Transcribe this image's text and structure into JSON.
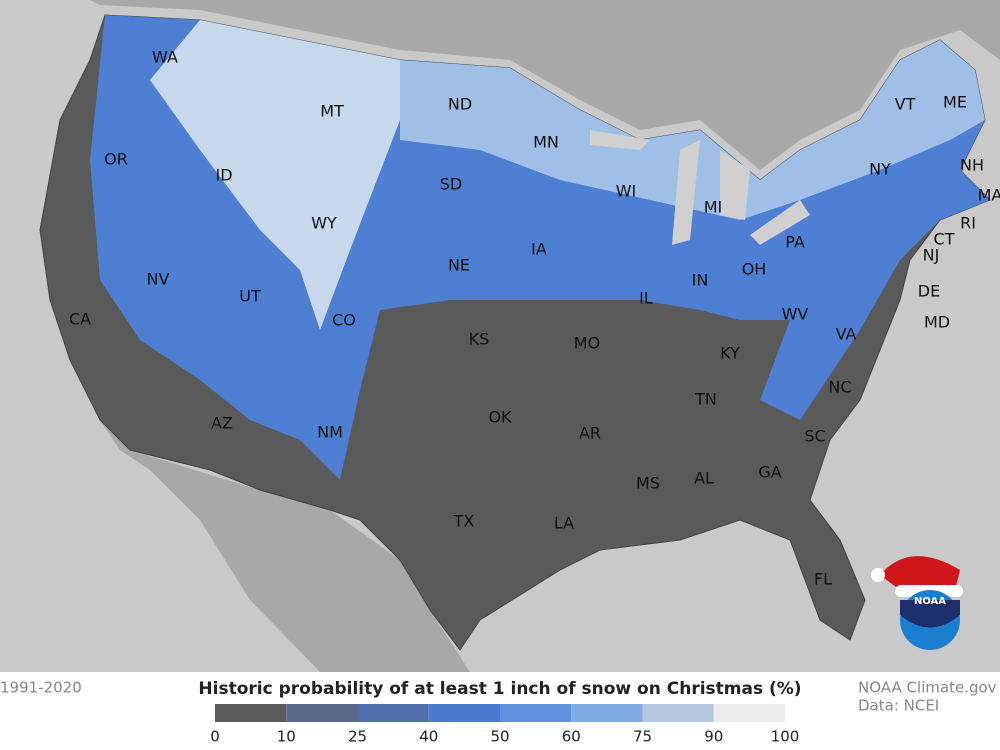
{
  "title": "Historic probability of at least 1 inch of snow on Christmas (%)",
  "period": "1991-2020",
  "credit": {
    "source": "NOAA Climate.gov",
    "data": "Data: NCEI"
  },
  "logo": "NOAA",
  "legend": {
    "ticks": [
      0,
      10,
      25,
      40,
      50,
      60,
      75,
      90,
      100
    ],
    "colors": [
      "#5a5a5a",
      "#5b6888",
      "#4f6eae",
      "#4b7bd0",
      "#5d91de",
      "#80aae3",
      "#b4c8e2",
      "#ececec"
    ]
  },
  "states": [
    "WA",
    "OR",
    "CA",
    "ID",
    "NV",
    "MT",
    "WY",
    "UT",
    "AZ",
    "CO",
    "NM",
    "ND",
    "SD",
    "NE",
    "KS",
    "OK",
    "TX",
    "MN",
    "IA",
    "MO",
    "AR",
    "LA",
    "WI",
    "IL",
    "MS",
    "MI",
    "IN",
    "KY",
    "TN",
    "AL",
    "OH",
    "GA",
    "FL",
    "SC",
    "NC",
    "VA",
    "WV",
    "PA",
    "NY",
    "VT",
    "NH",
    "ME",
    "MA",
    "RI",
    "CT",
    "NJ",
    "DE",
    "MD"
  ]
}
